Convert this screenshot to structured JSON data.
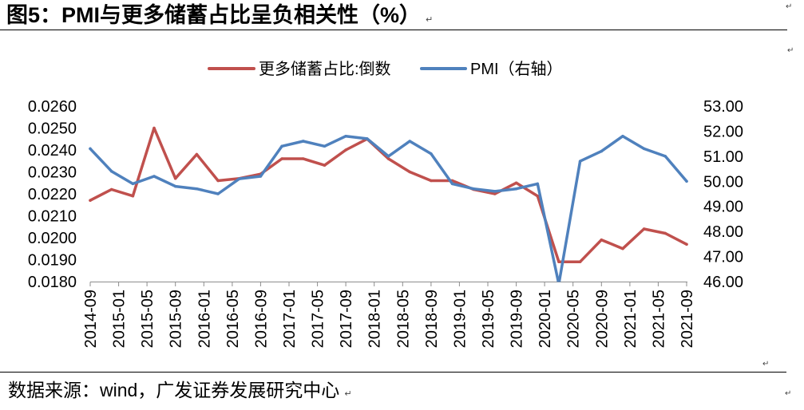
{
  "page": {
    "paragraph_mark": "↵"
  },
  "chart_data": {
    "type": "line",
    "title": "图5：PMI与更多储蓄占比呈负相关性（%）",
    "source": "数据来源：wind，广发证券发展研究中心",
    "legend_position": "top",
    "grid": false,
    "x_range": [
      "2014-09",
      "2021-09"
    ],
    "x_ticks": [
      "2014-09",
      "2015-01",
      "2015-05",
      "2015-09",
      "2016-01",
      "2016-05",
      "2016-09",
      "2017-01",
      "2017-05",
      "2017-09",
      "2018-01",
      "2018-05",
      "2018-09",
      "2019-01",
      "2019-05",
      "2019-09",
      "2020-01",
      "2020-05",
      "2020-09",
      "2021-01",
      "2021-05",
      "2021-09"
    ],
    "y_left": {
      "range": [
        0.018,
        0.026
      ],
      "ticks": [
        "0.0180",
        "0.0190",
        "0.0200",
        "0.0210",
        "0.0220",
        "0.0230",
        "0.0240",
        "0.0250",
        "0.0260"
      ]
    },
    "y_right": {
      "range": [
        46,
        53
      ],
      "ticks": [
        "46.00",
        "47.00",
        "48.00",
        "49.00",
        "50.00",
        "51.00",
        "52.00",
        "53.00"
      ]
    },
    "x": [
      "2014-09",
      "2014-12",
      "2015-03",
      "2015-06",
      "2015-09",
      "2015-12",
      "2016-03",
      "2016-06",
      "2016-09",
      "2016-12",
      "2017-03",
      "2017-06",
      "2017-09",
      "2017-12",
      "2018-03",
      "2018-06",
      "2018-09",
      "2018-12",
      "2019-03",
      "2019-06",
      "2019-09",
      "2019-12",
      "2020-03",
      "2020-06",
      "2020-09",
      "2020-12",
      "2021-03",
      "2021-06",
      "2021-09"
    ],
    "series": [
      {
        "name": "更多储蓄占比:倒数",
        "axis": "left",
        "color": "#C0504D",
        "values": [
          0.0217,
          0.0222,
          0.0219,
          0.025,
          0.0227,
          0.0238,
          0.0226,
          0.0227,
          0.0229,
          0.0236,
          0.0236,
          0.0233,
          0.024,
          0.0245,
          0.0236,
          0.023,
          0.0226,
          0.0226,
          0.0222,
          0.022,
          0.0225,
          0.0219,
          0.0189,
          0.0189,
          0.0199,
          0.0195,
          0.0204,
          0.0202,
          0.0197
        ]
      },
      {
        "name": "PMI（右轴）",
        "axis": "right",
        "color": "#4F81BD",
        "values": [
          51.3,
          50.4,
          49.9,
          50.2,
          49.8,
          49.7,
          49.5,
          50.1,
          50.2,
          51.4,
          51.6,
          51.4,
          51.8,
          51.7,
          51.0,
          51.6,
          51.1,
          49.9,
          49.7,
          49.6,
          49.7,
          49.9,
          45.9,
          50.8,
          51.2,
          51.8,
          51.3,
          51.0,
          50.0
        ]
      }
    ]
  }
}
